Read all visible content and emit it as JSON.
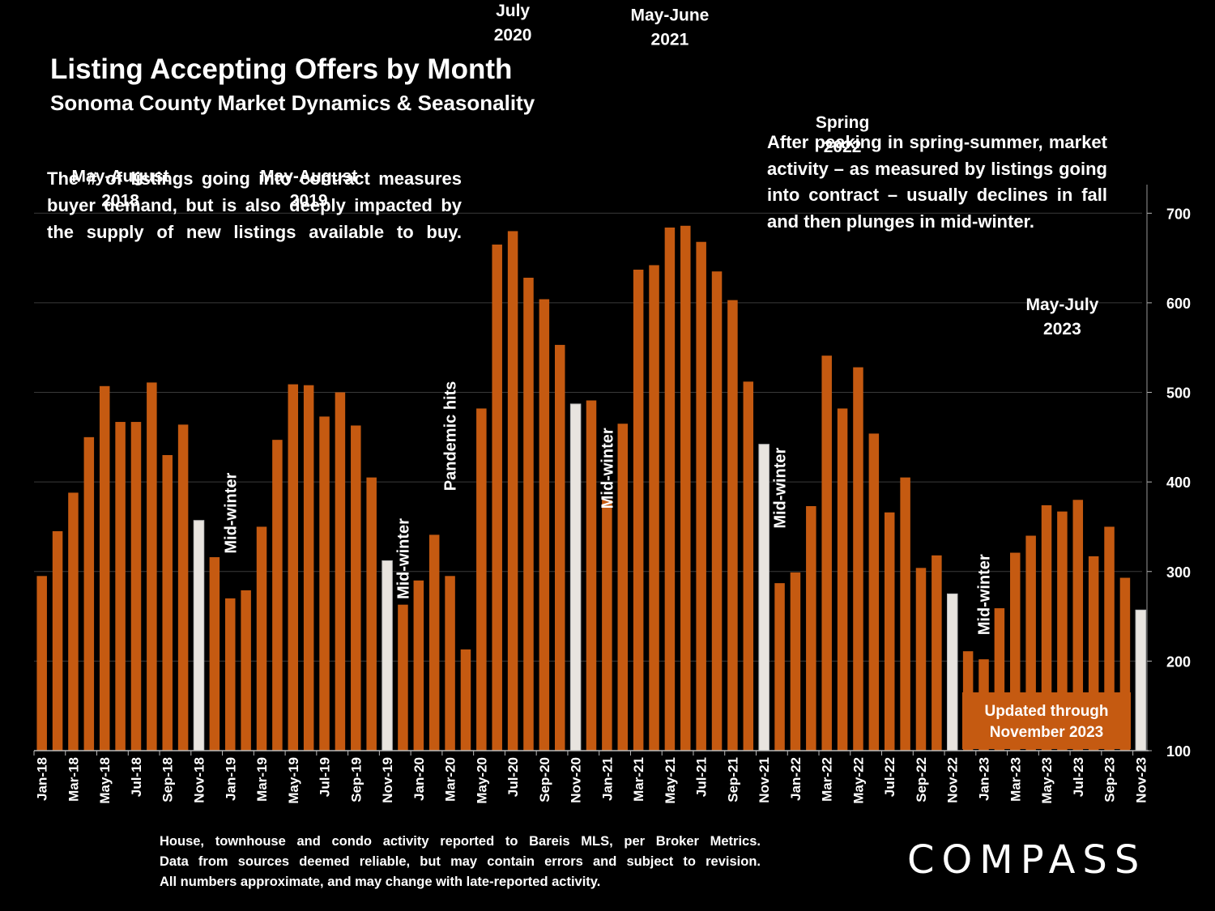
{
  "title": "Listing Accepting Offers by Month",
  "subtitle": "Sonoma County Market Dynamics & Seasonality",
  "note_left": "The # of listings going into contract measures buyer demand, but is also deeply impacted by the supply of new listings available to buy.",
  "note_right": "After peaking in spring-summer, market activity – as measured by listings going into contract – usually declines in fall and then plunges in mid-winter.",
  "footnote_lines": [
    "House, townhouse and condo activity reported to Bareis MLS, per Broker Metrics.",
    "Data from sources deemed reliable, but may contain errors and subject to revision.",
    "All numbers approximate, and may change with late-reported activity."
  ],
  "logo_text": "COMPASS",
  "colors": {
    "bar": "#C55A11",
    "highlight": "#E8E4DF",
    "grid": "#3A3A3A",
    "background": "#000000"
  },
  "chart_data": {
    "type": "bar",
    "title": "Listing Accepting Offers by Month",
    "ylim": [
      100,
      750
    ],
    "yticks": [
      100,
      200,
      300,
      400,
      500,
      600,
      700
    ],
    "y_axis_position": "right",
    "grid": true,
    "categories": [
      "Jan-18",
      "Feb-18",
      "Mar-18",
      "Apr-18",
      "May-18",
      "Jun-18",
      "Jul-18",
      "Aug-18",
      "Sep-18",
      "Oct-18",
      "Nov-18",
      "Dec-18",
      "Jan-19",
      "Feb-19",
      "Mar-19",
      "Apr-19",
      "May-19",
      "Jun-19",
      "Jul-19",
      "Aug-19",
      "Sep-19",
      "Oct-19",
      "Nov-19",
      "Dec-19",
      "Jan-20",
      "Feb-20",
      "Mar-20",
      "Apr-20",
      "May-20",
      "Jun-20",
      "Jul-20",
      "Aug-20",
      "Sep-20",
      "Oct-20",
      "Nov-20",
      "Dec-20",
      "Jan-21",
      "Feb-21",
      "Mar-21",
      "Apr-21",
      "May-21",
      "Jun-21",
      "Jul-21",
      "Aug-21",
      "Sep-21",
      "Oct-21",
      "Nov-21",
      "Dec-21",
      "Jan-22",
      "Feb-22",
      "Mar-22",
      "Apr-22",
      "May-22",
      "Jun-22",
      "Jul-22",
      "Aug-22",
      "Sep-22",
      "Oct-22",
      "Nov-22",
      "Dec-22",
      "Jan-23",
      "Feb-23",
      "Mar-23",
      "Apr-23",
      "May-23",
      "Jun-23",
      "Jul-23",
      "Aug-23",
      "Sep-23",
      "Oct-23",
      "Nov-23"
    ],
    "values": [
      295,
      345,
      388,
      450,
      507,
      467,
      467,
      511,
      430,
      464,
      357,
      316,
      270,
      279,
      350,
      447,
      509,
      508,
      473,
      500,
      463,
      405,
      312,
      263,
      290,
      341,
      295,
      213,
      482,
      665,
      680,
      628,
      604,
      553,
      487,
      491,
      380,
      465,
      637,
      642,
      684,
      686,
      668,
      635,
      603,
      512,
      442,
      287,
      299,
      373,
      541,
      482,
      528,
      454,
      366,
      405,
      304,
      318,
      275,
      211,
      202,
      259,
      321,
      340,
      374,
      367,
      380,
      317,
      350,
      293,
      257
    ],
    "highlighted": [
      "Nov-18",
      "Nov-19",
      "Nov-20",
      "Nov-21",
      "Nov-22",
      "Nov-23"
    ],
    "x_tick_labels": [
      "Jan-18",
      "Mar-18",
      "May-18",
      "Jul-18",
      "Sep-18",
      "Nov-18",
      "Jan-19",
      "Mar-19",
      "May-19",
      "Jul-19",
      "Sep-19",
      "Nov-19",
      "Jan-20",
      "Mar-20",
      "May-20",
      "Jul-20",
      "Sep-20",
      "Nov-20",
      "Jan-21",
      "Mar-21",
      "May-21",
      "Jul-21",
      "Sep-21",
      "Nov-21",
      "Jan-22",
      "Mar-22",
      "May-22",
      "Jul-22",
      "Sep-22",
      "Nov-22",
      "Jan-23",
      "Mar-23",
      "May-23",
      "Jul-23",
      "Sep-23",
      "Nov-23"
    ],
    "annotations": [
      {
        "lines": [
          "May-August",
          "2018"
        ],
        "anchor": "Jun-18",
        "value": 735,
        "orient": "horizontal"
      },
      {
        "lines": [
          "May-August",
          "2019"
        ],
        "anchor": "Jun-19",
        "value": 735,
        "orient": "horizontal"
      },
      {
        "lines": [
          "July",
          "2020"
        ],
        "anchor": "Jul-20",
        "value": 920,
        "orient": "horizontal"
      },
      {
        "lines": [
          "May-June",
          "2021"
        ],
        "anchor": "May-21",
        "value": 915,
        "orient": "horizontal"
      },
      {
        "lines": [
          "Spring",
          "2022"
        ],
        "anchor": "Apr-22",
        "value": 795,
        "orient": "horizontal"
      },
      {
        "lines": [
          "May-July",
          "2023"
        ],
        "anchor": "Jun-23",
        "value": 592,
        "orient": "horizontal"
      },
      {
        "lines": [
          "Mid-winter"
        ],
        "anchor": "Jan-19",
        "value": 320,
        "orient": "vertical"
      },
      {
        "lines": [
          "Mid-winter"
        ],
        "anchor": "Dec-19",
        "value": 269,
        "orient": "vertical"
      },
      {
        "lines": [
          "Pandemic hits"
        ],
        "anchor": "Mar-20",
        "value": 390,
        "orient": "vertical"
      },
      {
        "lines": [
          "Mid-winter"
        ],
        "anchor": "Jan-21",
        "value": 370,
        "orient": "vertical"
      },
      {
        "lines": [
          "Mid-winter"
        ],
        "anchor": "Dec-21",
        "value": 348,
        "orient": "vertical"
      },
      {
        "lines": [
          "Mid-winter"
        ],
        "anchor": "Jan-23",
        "value": 229,
        "orient": "vertical"
      }
    ],
    "update_box": {
      "lines": [
        "Updated through",
        "November 2023"
      ]
    }
  }
}
